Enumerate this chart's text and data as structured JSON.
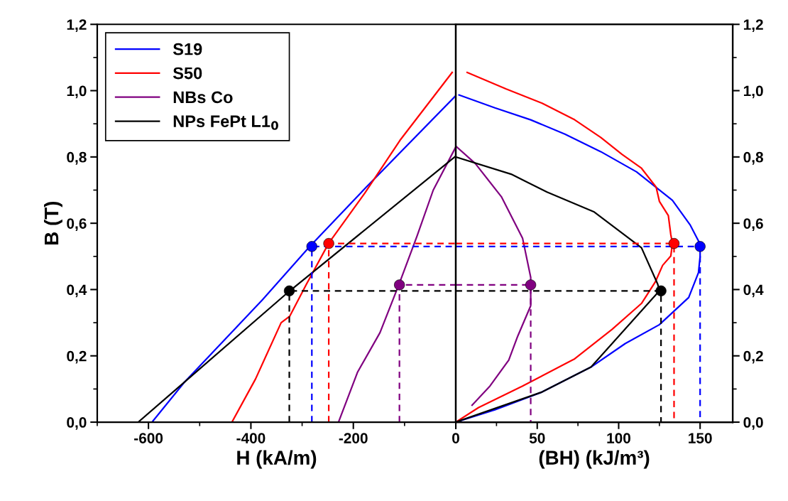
{
  "chart_data": [
    {
      "type": "line",
      "xlabel": "H (kA/m)",
      "ylabel": "B (T)",
      "xlim": [
        -700,
        0
      ],
      "xticks": [
        -600,
        -400,
        -200,
        0
      ],
      "ylim": [
        0,
        1.2
      ],
      "yticks": [
        {
          "value": 0,
          "label": "0,0"
        },
        {
          "value": 0.2,
          "label": "0,2"
        },
        {
          "value": 0.4,
          "label": "0,4"
        },
        {
          "value": 0.6,
          "label": "0,6"
        },
        {
          "value": 0.8,
          "label": "0,8"
        },
        {
          "value": 1.0,
          "label": "1,0"
        },
        {
          "value": 1.2,
          "label": "1,2"
        }
      ],
      "legend": "top left",
      "series": [
        {
          "name": "S19",
          "color": "#0000ff",
          "x": [
            -593,
            -530,
            -377,
            -285,
            -174,
            0
          ],
          "values": [
            0,
            0.12,
            0.37,
            0.53,
            0.71,
            0.985
          ]
        },
        {
          "name": "S50",
          "color": "#ff0000",
          "x": [
            -437,
            -391,
            -341,
            -324,
            -292,
            -248,
            -178,
            -109,
            -7
          ],
          "values": [
            0,
            0.13,
            0.3,
            0.32,
            0.415,
            0.54,
            0.69,
            0.85,
            1.055
          ]
        },
        {
          "name": "NBs Co",
          "color": "#800080",
          "x": [
            -229,
            -192,
            -148,
            -111,
            -76,
            -44,
            0
          ],
          "values": [
            0,
            0.15,
            0.27,
            0.415,
            0.56,
            0.7,
            0.83
          ]
        },
        {
          "name": "NPs FePt L1$_{0}$",
          "color": "#000000",
          "x": [
            -620,
            -325,
            -2
          ],
          "values": [
            0,
            0.395,
            0.8
          ]
        },
        {
          "type": "line",
          "line_style": "dashed",
          "color": "#0000ff",
          "x": [
            -281,
            -281,
            0
          ],
          "values": [
            0,
            0.53,
            0.53
          ]
        },
        {
          "type": "line",
          "line_style": "dashed",
          "color": "#ff0000",
          "x": [
            -248,
            -248,
            0
          ],
          "values": [
            0,
            0.539,
            0.539
          ]
        },
        {
          "type": "line",
          "line_style": "dashed",
          "color": "#800080",
          "x": [
            -110,
            -110,
            0
          ],
          "values": [
            0,
            0.414,
            0.414
          ]
        },
        {
          "type": "line",
          "line_style": "dashed",
          "color": "#000000",
          "x": [
            -325,
            -325,
            0
          ],
          "values": [
            0,
            0.396,
            0.396
          ]
        },
        {
          "type": "scatter",
          "marker": "circle",
          "colors": [
            "#0000ff",
            "#ff0000",
            "#800080",
            "#000000"
          ],
          "x": [
            -281,
            -248,
            -110,
            -325
          ],
          "values": [
            0.53,
            0.539,
            0.414,
            0.396
          ]
        }
      ]
    },
    {
      "type": "line",
      "xlabel": "(BH) (kJ/m³)",
      "xlim": [
        0,
        170
      ],
      "xticks": [
        {
          "value": 0,
          "label": null
        },
        50,
        100,
        150
      ],
      "y2lim": [
        0,
        1.2
      ],
      "y2ticks": [
        {
          "value": 0,
          "label": "0,0"
        },
        {
          "value": 0.2,
          "label": "0,2"
        },
        {
          "value": 0.4,
          "label": "0,4"
        },
        {
          "value": 0.6,
          "label": "0,6"
        },
        {
          "value": 0.8,
          "label": "0,8"
        },
        {
          "value": 1.0,
          "label": "1,0"
        },
        {
          "value": 1.2,
          "label": "1,2"
        }
      ],
      "series": [
        {
          "axis": "y2",
          "color": "#0000ff",
          "x": [
            0,
            24,
            53,
            83,
            104,
            125,
            143,
            149,
            150,
            150,
            144,
            133,
            111,
            89,
            67,
            46,
            24,
            2
          ],
          "values": [
            0,
            0.037,
            0.091,
            0.166,
            0.237,
            0.294,
            0.376,
            0.451,
            0.5,
            0.537,
            0.594,
            0.669,
            0.755,
            0.816,
            0.869,
            0.912,
            0.948,
            0.987
          ]
        },
        {
          "axis": "y2",
          "color": "#ff0000",
          "x": [
            0,
            14,
            41,
            73,
            96,
            114,
            122.5,
            127,
            132,
            133,
            132,
            130.5,
            125,
            123,
            114,
            102,
            89,
            73,
            53,
            31,
            7
          ],
          "values": [
            0,
            0.044,
            0.109,
            0.191,
            0.28,
            0.358,
            0.423,
            0.473,
            0.501,
            0.539,
            0.566,
            0.623,
            0.666,
            0.709,
            0.766,
            0.808,
            0.859,
            0.912,
            0.962,
            1.005,
            1.055
          ]
        },
        {
          "axis": "y2",
          "color": "#800080",
          "x": [
            10,
            21,
            32.5,
            38,
            46,
            46,
            46,
            41,
            28,
            12,
            0.6
          ],
          "values": [
            0.051,
            0.109,
            0.187,
            0.259,
            0.351,
            0.416,
            0.437,
            0.555,
            0.68,
            0.78,
            0.83
          ]
        },
        {
          "axis": "y2",
          "color": "#000000",
          "x": [
            0,
            53,
            83,
            125,
            124,
            114,
            85,
            56,
            34,
            0
          ],
          "values": [
            0,
            0.091,
            0.166,
            0.396,
            0.416,
            0.526,
            0.634,
            0.694,
            0.748,
            0.8
          ]
        },
        {
          "axis": "y2",
          "type": "line",
          "line_style": "dashed",
          "color": "#0000ff",
          "x": [
            0,
            150,
            150
          ],
          "values": [
            0.53,
            0.53,
            0
          ]
        },
        {
          "axis": "y2",
          "type": "line",
          "line_style": "dashed",
          "color": "#ff0000",
          "x": [
            0,
            134,
            134
          ],
          "values": [
            0.539,
            0.539,
            0
          ]
        },
        {
          "axis": "y2",
          "type": "line",
          "line_style": "dashed",
          "color": "#800080",
          "x": [
            0,
            46,
            46
          ],
          "values": [
            0.414,
            0.414,
            0
          ]
        },
        {
          "axis": "y2",
          "type": "line",
          "line_style": "dashed",
          "color": "#000000",
          "x": [
            0,
            126,
            126
          ],
          "values": [
            0.396,
            0.396,
            0
          ]
        },
        {
          "axis": "y2",
          "type": "scatter",
          "marker": "circle",
          "colors": [
            "#0000ff",
            "#ff0000",
            "#800080",
            "#000000"
          ],
          "x": [
            150,
            134,
            46,
            126
          ],
          "values": [
            0.53,
            0.539,
            0.414,
            0.396
          ]
        }
      ]
    }
  ]
}
